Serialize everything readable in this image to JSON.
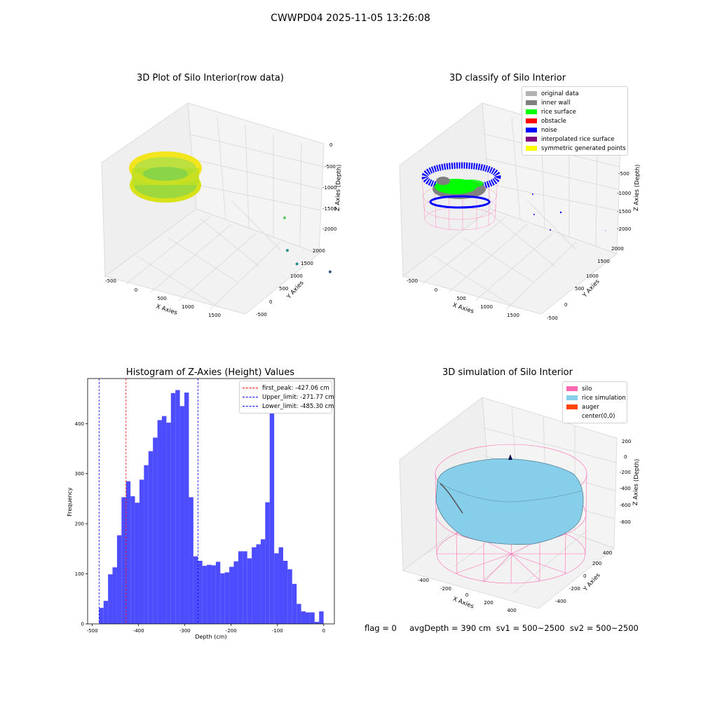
{
  "figure": {
    "suptitle": "CWWPD04 2025-11-05 13:26:08",
    "footer": "flag = 0     avgDepth = 390 cm  sv1 = 500~2500  sv2 = 500~2500"
  },
  "chart_data": [
    {
      "type": "scatter3d",
      "title": "3D Plot of Silo Interior(row data)",
      "xlabel": "X Axies",
      "ylabel": "Y Axies",
      "zlabel": "Z Axies (Depth)",
      "xticks": [
        "-500",
        "0",
        "500",
        "1000",
        "1500"
      ],
      "yticks": [
        "-500",
        "0",
        "500",
        "1000",
        "1500",
        "2000"
      ],
      "zticks": [
        "0",
        "-500",
        "-1000",
        "-1500",
        "-2000"
      ],
      "colormap": "viridis",
      "outliers": [
        {
          "x": 1000,
          "y": 1500,
          "z": -1350
        },
        {
          "x": 1300,
          "y": 1200,
          "z": -1650
        },
        {
          "x": 1400,
          "y": 1300,
          "z": -1900
        },
        {
          "x": 1700,
          "y": 1700,
          "z": -2050
        }
      ]
    },
    {
      "type": "scatter3d",
      "title": "3D classify of Silo Interior",
      "xticks": [
        "-500",
        "0",
        "500",
        "1000",
        "1500"
      ],
      "yticks": [
        "-500",
        "0",
        "500",
        "1000",
        "1500",
        "2000"
      ],
      "zticks": [
        "0",
        "-500",
        "-1000",
        "-1500",
        "-2000"
      ],
      "zlabel": "Z Axies (Depth)",
      "xlabel": "X Axies",
      "ylabel": "Y Axies",
      "legend_position": "upper right",
      "legend": [
        {
          "label": "original data",
          "color": "#b3b3b3"
        },
        {
          "label": "inner wall",
          "color": "#808080"
        },
        {
          "label": "rice surface",
          "color": "#00ff00"
        },
        {
          "label": "obstacle",
          "color": "#ff0000"
        },
        {
          "label": "noise",
          "color": "#0000ff"
        },
        {
          "label": "interpolated rice surface",
          "color": "#800080"
        },
        {
          "label": "symmetric generated points",
          "color": "#ffff00"
        }
      ]
    },
    {
      "type": "bar",
      "title": "Histogram of Z-Axies (Height) Values",
      "xlabel": "Depth (cm)",
      "ylabel": "Frequency",
      "xlim": [
        -510,
        23
      ],
      "ylim": [
        0,
        490
      ],
      "xticks": [
        -500,
        -400,
        -300,
        -200,
        -100,
        0
      ],
      "yticks": [
        0,
        100,
        200,
        300,
        400
      ],
      "bar_color": "#4d4dff",
      "bin_start": -485.3,
      "bin_width": 9.7,
      "values": [
        32,
        46,
        99,
        113,
        177,
        253,
        285,
        255,
        242,
        288,
        317,
        345,
        372,
        407,
        415,
        402,
        461,
        467,
        435,
        462,
        253,
        135,
        126,
        116,
        118,
        117,
        124,
        101,
        103,
        114,
        125,
        145,
        145,
        131,
        153,
        159,
        169,
        243,
        443,
        141,
        153,
        126,
        109,
        80,
        40,
        25,
        23,
        23,
        4,
        25
      ],
      "legend_position": "upper right",
      "vlines": [
        {
          "label": "first_peak: -427.06 cm",
          "x": -427.06,
          "color": "#ff0000"
        },
        {
          "label": "Upper_limit: -271.77 cm",
          "x": -271.77,
          "color": "#0000ff"
        },
        {
          "label": "Lower_limit: -485.30 cm",
          "x": -485.3,
          "color": "#0000ff"
        }
      ]
    },
    {
      "type": "surface3d",
      "title": "3D simulation of Silo Interior",
      "xlabel": "X Axies",
      "ylabel": "Y Axies",
      "zlabel": "Z Axies (Depth)",
      "xticks": [
        "-400",
        "-200",
        "0",
        "200",
        "400"
      ],
      "yticks": [
        "-400",
        "-200",
        "0",
        "200",
        "400"
      ],
      "zticks": [
        "200",
        "0",
        "-200",
        "-400",
        "-600",
        "-800"
      ],
      "legend_position": "upper right",
      "legend": [
        {
          "label": "silo",
          "color": "#ff69b4"
        },
        {
          "label": "rice simulation",
          "color": "#87ceeb"
        },
        {
          "label": "auger",
          "color": "#ff4500"
        },
        {
          "label": "center(0,0)",
          "color": ""
        }
      ]
    }
  ]
}
